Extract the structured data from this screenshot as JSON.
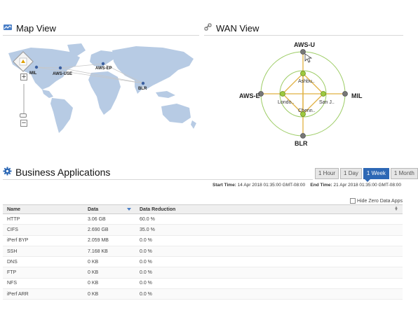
{
  "map_view": {
    "title": "Map View",
    "sites": [
      "MIL",
      "AWS-USE",
      "AWS-EP",
      "BLR"
    ],
    "zoom_in": "+",
    "zoom_out": "−"
  },
  "wan_view": {
    "title": "WAN View",
    "outer_nodes": {
      "top": "AWS-U",
      "left": "AWS-E",
      "right": "MIL",
      "bottom": "BLR"
    },
    "inner_nodes": {
      "top": "Ashbu..",
      "left": "Londo..",
      "right": "San J..",
      "bottom": "Chenn.."
    }
  },
  "business_apps": {
    "title": "Business Applications",
    "ranges": [
      "1 Hour",
      "1 Day",
      "1 Week",
      "1 Month"
    ],
    "active_range": "1 Week",
    "start_label": "Start Time:",
    "start_value": "14 Apr 2018 01:35:00 GMT-08:00",
    "end_label": "End Time:",
    "end_value": "21 Apr 2018 01:35:00 GMT-08:00",
    "hide_zero_label": "Hide Zero Data Apps",
    "columns": [
      "Name",
      "Data",
      "Data Reduction"
    ],
    "rows": [
      [
        "HTTP",
        "3.06 GB",
        "60.0 %"
      ],
      [
        "CIFS",
        "2.690 GB",
        "35.0 %"
      ],
      [
        "iPerf BYP",
        "2.059 MB",
        "0.0 %"
      ],
      [
        "SSH",
        "7.168 KB",
        "0.0 %"
      ],
      [
        "DNS",
        "0 KB",
        "0.0 %"
      ],
      [
        "FTP",
        "0 KB",
        "0.0 %"
      ],
      [
        "NFS",
        "0 KB",
        "0.0 %"
      ],
      [
        "iPerf ARR",
        "0 KB",
        "0.0 %"
      ]
    ]
  },
  "colors": {
    "accent": "#2d68b5",
    "map_land": "#b7cbe4",
    "wan_link": "#e0b040",
    "wan_ring": "#9ccc64",
    "wan_node_inner": "#9dc93e",
    "wan_node_outer": "#777777"
  },
  "icons": {
    "map_view": "map-icon",
    "wan_view": "link-icon",
    "business_apps": "gear-icon"
  }
}
